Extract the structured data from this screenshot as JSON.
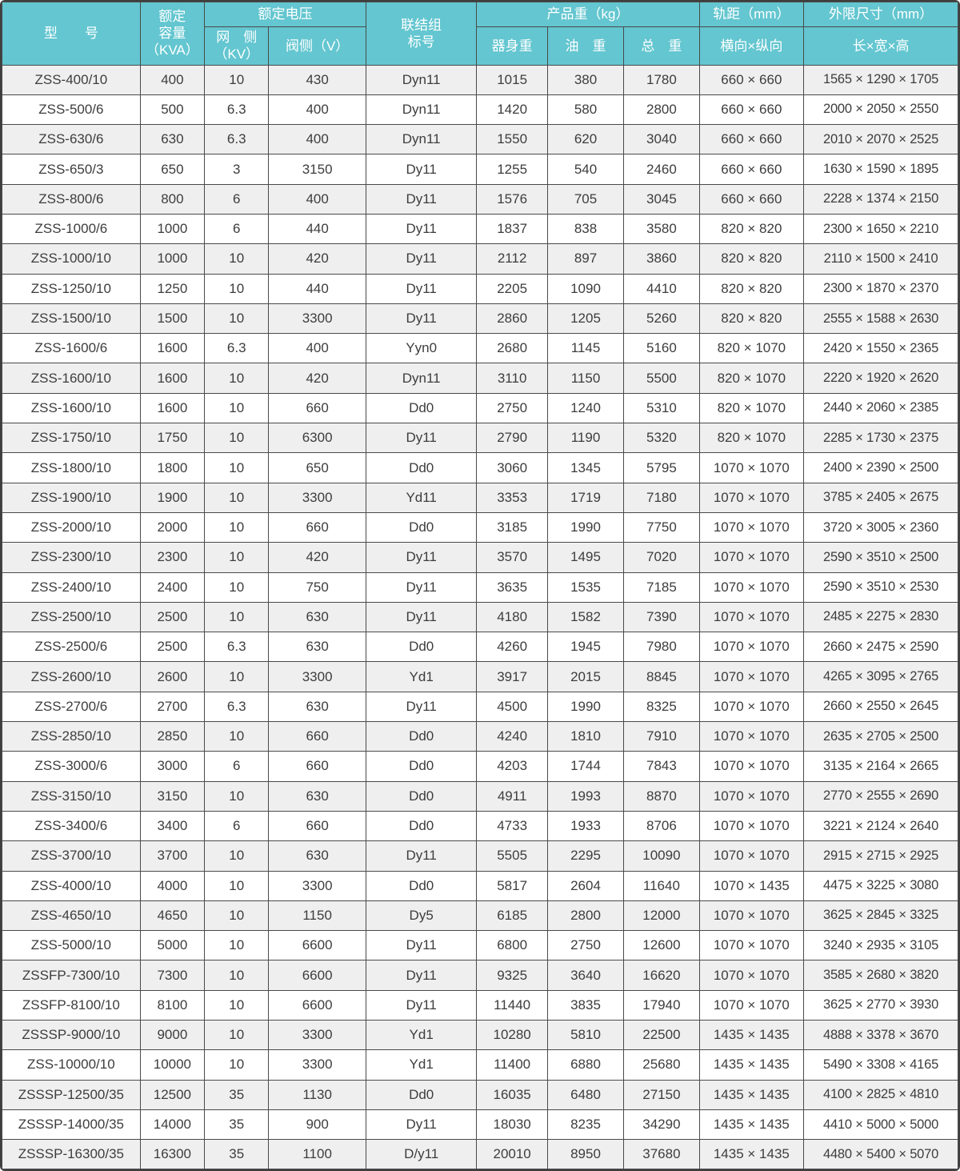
{
  "table": {
    "colors": {
      "header_bg": "#63c6d0",
      "header_text": "#ffffff",
      "grid_line": "#4a4a4a",
      "row_alt_bg": "#efefef",
      "body_text": "#3d3d3d"
    },
    "header": {
      "model": "型　　号",
      "capacity_lines": [
        "额定",
        "容量",
        "（KVA）"
      ],
      "rated_voltage": "额定电压",
      "grid_side_lines": [
        "网　侧",
        "（KV）"
      ],
      "valve_side": "阀侧（V）",
      "vector_group_lines": [
        "联结组",
        "标号"
      ],
      "product_weight": "产品重（kg）",
      "body_weight": "器身重",
      "oil_weight": "油　重",
      "total_weight": "总　重",
      "track_gauge": "轨距（mm）",
      "track_gauge_sub": "横向×纵向",
      "outline_dims": "外限尺寸（mm）",
      "outline_dims_sub": "长×宽×高"
    }
  },
  "rows": [
    {
      "model": "ZSS-400/10",
      "kva": "400",
      "grid_kv": "10",
      "valve_v": "430",
      "vector": "Dyn11",
      "body_weight": "1015",
      "oil_weight": "380",
      "total_weight": "1780",
      "gauge": "660 × 660",
      "dimensions": "1565 × 1290 × 1705"
    },
    {
      "model": "ZSS-500/6",
      "kva": "500",
      "grid_kv": "6.3",
      "valve_v": "400",
      "vector": "Dyn11",
      "body_weight": "1420",
      "oil_weight": "580",
      "total_weight": "2800",
      "gauge": "660 × 660",
      "dimensions": "2000 × 2050 × 2550"
    },
    {
      "model": "ZSS-630/6",
      "kva": "630",
      "grid_kv": "6.3",
      "valve_v": "400",
      "vector": "Dyn11",
      "body_weight": "1550",
      "oil_weight": "620",
      "total_weight": "3040",
      "gauge": "660 × 660",
      "dimensions": "2010 × 2070 × 2525"
    },
    {
      "model": "ZSS-650/3",
      "kva": "650",
      "grid_kv": "3",
      "valve_v": "3150",
      "vector": "Dy11",
      "body_weight": "1255",
      "oil_weight": "540",
      "total_weight": "2460",
      "gauge": "660 × 660",
      "dimensions": "1630 × 1590 × 1895"
    },
    {
      "model": "ZSS-800/6",
      "kva": "800",
      "grid_kv": "6",
      "valve_v": "400",
      "vector": "Dy11",
      "body_weight": "1576",
      "oil_weight": "705",
      "total_weight": "3045",
      "gauge": "660 × 660",
      "dimensions": "2228 × 1374 × 2150"
    },
    {
      "model": "ZSS-1000/6",
      "kva": "1000",
      "grid_kv": "6",
      "valve_v": "440",
      "vector": "Dy11",
      "body_weight": "1837",
      "oil_weight": "838",
      "total_weight": "3580",
      "gauge": "820 × 820",
      "dimensions": "2300 × 1650 × 2210"
    },
    {
      "model": "ZSS-1000/10",
      "kva": "1000",
      "grid_kv": "10",
      "valve_v": "420",
      "vector": "Dy11",
      "body_weight": "2112",
      "oil_weight": "897",
      "total_weight": "3860",
      "gauge": "820 × 820",
      "dimensions": "2110 × 1500 × 2410"
    },
    {
      "model": "ZSS-1250/10",
      "kva": "1250",
      "grid_kv": "10",
      "valve_v": "440",
      "vector": "Dy11",
      "body_weight": "2205",
      "oil_weight": "1090",
      "total_weight": "4410",
      "gauge": "820 × 820",
      "dimensions": "2300 × 1870 × 2370"
    },
    {
      "model": "ZSS-1500/10",
      "kva": "1500",
      "grid_kv": "10",
      "valve_v": "3300",
      "vector": "Dy11",
      "body_weight": "2860",
      "oil_weight": "1205",
      "total_weight": "5260",
      "gauge": "820 × 820",
      "dimensions": "2555 × 1588 × 2630"
    },
    {
      "model": "ZSS-1600/6",
      "kva": "1600",
      "grid_kv": "6.3",
      "valve_v": "400",
      "vector": "Yyn0",
      "body_weight": "2680",
      "oil_weight": "1145",
      "total_weight": "5160",
      "gauge": "820 × 1070",
      "dimensions": "2420 × 1550 × 2365"
    },
    {
      "model": "ZSS-1600/10",
      "kva": "1600",
      "grid_kv": "10",
      "valve_v": "420",
      "vector": "Dyn11",
      "body_weight": "3110",
      "oil_weight": "1150",
      "total_weight": "5500",
      "gauge": "820 × 1070",
      "dimensions": "2220 × 1920 × 2620"
    },
    {
      "model": "ZSS-1600/10",
      "kva": "1600",
      "grid_kv": "10",
      "valve_v": "660",
      "vector": "Dd0",
      "body_weight": "2750",
      "oil_weight": "1240",
      "total_weight": "5310",
      "gauge": "820 × 1070",
      "dimensions": "2440 × 2060 × 2385"
    },
    {
      "model": "ZSS-1750/10",
      "kva": "1750",
      "grid_kv": "10",
      "valve_v": "6300",
      "vector": "Dy11",
      "body_weight": "2790",
      "oil_weight": "1190",
      "total_weight": "5320",
      "gauge": "820 × 1070",
      "dimensions": "2285 × 1730 × 2375"
    },
    {
      "model": "ZSS-1800/10",
      "kva": "1800",
      "grid_kv": "10",
      "valve_v": "650",
      "vector": "Dd0",
      "body_weight": "3060",
      "oil_weight": "1345",
      "total_weight": "5795",
      "gauge": "1070 × 1070",
      "dimensions": "2400 × 2390 × 2500"
    },
    {
      "model": "ZSS-1900/10",
      "kva": "1900",
      "grid_kv": "10",
      "valve_v": "3300",
      "vector": "Yd11",
      "body_weight": "3353",
      "oil_weight": "1719",
      "total_weight": "7180",
      "gauge": "1070 × 1070",
      "dimensions": "3785 × 2405 × 2675"
    },
    {
      "model": "ZSS-2000/10",
      "kva": "2000",
      "grid_kv": "10",
      "valve_v": "660",
      "vector": "Dd0",
      "body_weight": "3185",
      "oil_weight": "1990",
      "total_weight": "7750",
      "gauge": "1070 × 1070",
      "dimensions": "3720 × 3005 × 2360"
    },
    {
      "model": "ZSS-2300/10",
      "kva": "2300",
      "grid_kv": "10",
      "valve_v": "420",
      "vector": "Dy11",
      "body_weight": "3570",
      "oil_weight": "1495",
      "total_weight": "7020",
      "gauge": "1070 × 1070",
      "dimensions": "2590 × 3510 × 2500"
    },
    {
      "model": "ZSS-2400/10",
      "kva": "2400",
      "grid_kv": "10",
      "valve_v": "750",
      "vector": "Dy11",
      "body_weight": "3635",
      "oil_weight": "1535",
      "total_weight": "7185",
      "gauge": "1070 × 1070",
      "dimensions": "2590 × 3510 × 2530"
    },
    {
      "model": "ZSS-2500/10",
      "kva": "2500",
      "grid_kv": "10",
      "valve_v": "630",
      "vector": "Dy11",
      "body_weight": "4180",
      "oil_weight": "1582",
      "total_weight": "7390",
      "gauge": "1070 × 1070",
      "dimensions": "2485 × 2275 × 2830"
    },
    {
      "model": "ZSS-2500/6",
      "kva": "2500",
      "grid_kv": "6.3",
      "valve_v": "630",
      "vector": "Dd0",
      "body_weight": "4260",
      "oil_weight": "1945",
      "total_weight": "7980",
      "gauge": "1070 × 1070",
      "dimensions": "2660 × 2475 × 2590"
    },
    {
      "model": "ZSS-2600/10",
      "kva": "2600",
      "grid_kv": "10",
      "valve_v": "3300",
      "vector": "Yd1",
      "body_weight": "3917",
      "oil_weight": "2015",
      "total_weight": "8845",
      "gauge": "1070 × 1070",
      "dimensions": "4265 × 3095 × 2765"
    },
    {
      "model": "ZSS-2700/6",
      "kva": "2700",
      "grid_kv": "6.3",
      "valve_v": "630",
      "vector": "Dy11",
      "body_weight": "4500",
      "oil_weight": "1990",
      "total_weight": "8325",
      "gauge": "1070 × 1070",
      "dimensions": "2660 × 2550 × 2645"
    },
    {
      "model": "ZSS-2850/10",
      "kva": "2850",
      "grid_kv": "10",
      "valve_v": "660",
      "vector": "Dd0",
      "body_weight": "4240",
      "oil_weight": "1810",
      "total_weight": "7910",
      "gauge": "1070 × 1070",
      "dimensions": "2635 × 2705 × 2500"
    },
    {
      "model": "ZSS-3000/6",
      "kva": "3000",
      "grid_kv": "6",
      "valve_v": "660",
      "vector": "Dd0",
      "body_weight": "4203",
      "oil_weight": "1744",
      "total_weight": "7843",
      "gauge": "1070 × 1070",
      "dimensions": "3135 × 2164 × 2665"
    },
    {
      "model": "ZSS-3150/10",
      "kva": "3150",
      "grid_kv": "10",
      "valve_v": "630",
      "vector": "Dd0",
      "body_weight": "4911",
      "oil_weight": "1993",
      "total_weight": "8870",
      "gauge": "1070 × 1070",
      "dimensions": "2770 × 2555 × 2690"
    },
    {
      "model": "ZSS-3400/6",
      "kva": "3400",
      "grid_kv": "6",
      "valve_v": "660",
      "vector": "Dd0",
      "body_weight": "4733",
      "oil_weight": "1933",
      "total_weight": "8706",
      "gauge": "1070 × 1070",
      "dimensions": "3221 × 2124 × 2640"
    },
    {
      "model": "ZSS-3700/10",
      "kva": "3700",
      "grid_kv": "10",
      "valve_v": "630",
      "vector": "Dy11",
      "body_weight": "5505",
      "oil_weight": "2295",
      "total_weight": "10090",
      "gauge": "1070 × 1070",
      "dimensions": "2915 × 2715 × 2925"
    },
    {
      "model": "ZSS-4000/10",
      "kva": "4000",
      "grid_kv": "10",
      "valve_v": "3300",
      "vector": "Dd0",
      "body_weight": "5817",
      "oil_weight": "2604",
      "total_weight": "11640",
      "gauge": "1070 × 1435",
      "dimensions": "4475 × 3225 × 3080"
    },
    {
      "model": "ZSS-4650/10",
      "kva": "4650",
      "grid_kv": "10",
      "valve_v": "1150",
      "vector": "Dy5",
      "body_weight": "6185",
      "oil_weight": "2800",
      "total_weight": "12000",
      "gauge": "1070 × 1070",
      "dimensions": "3625 × 2845 × 3325"
    },
    {
      "model": "ZSS-5000/10",
      "kva": "5000",
      "grid_kv": "10",
      "valve_v": "6600",
      "vector": "Dy11",
      "body_weight": "6800",
      "oil_weight": "2750",
      "total_weight": "12600",
      "gauge": "1070 × 1070",
      "dimensions": "3240 × 2935 × 3105"
    },
    {
      "model": "ZSSFP-7300/10",
      "kva": "7300",
      "grid_kv": "10",
      "valve_v": "6600",
      "vector": "Dy11",
      "body_weight": "9325",
      "oil_weight": "3640",
      "total_weight": "16620",
      "gauge": "1070 × 1070",
      "dimensions": "3585 × 2680 × 3820"
    },
    {
      "model": "ZSSFP-8100/10",
      "kva": "8100",
      "grid_kv": "10",
      "valve_v": "6600",
      "vector": "Dy11",
      "body_weight": "11440",
      "oil_weight": "3835",
      "total_weight": "17940",
      "gauge": "1070 × 1070",
      "dimensions": "3625 × 2770 × 3930"
    },
    {
      "model": "ZSSSP-9000/10",
      "kva": "9000",
      "grid_kv": "10",
      "valve_v": "3300",
      "vector": "Yd1",
      "body_weight": "10280",
      "oil_weight": "5810",
      "total_weight": "22500",
      "gauge": "1435 × 1435",
      "dimensions": "4888 × 3378 × 3670"
    },
    {
      "model": "ZSS-10000/10",
      "kva": "10000",
      "grid_kv": "10",
      "valve_v": "3300",
      "vector": "Yd1",
      "body_weight": "11400",
      "oil_weight": "6880",
      "total_weight": "25680",
      "gauge": "1435 × 1435",
      "dimensions": "5490 × 3308 × 4165"
    },
    {
      "model": "ZSSSP-12500/35",
      "kva": "12500",
      "grid_kv": "35",
      "valve_v": "1130",
      "vector": "Dd0",
      "body_weight": "16035",
      "oil_weight": "6480",
      "total_weight": "27150",
      "gauge": "1435 × 1435",
      "dimensions": "4100 × 2825 × 4810"
    },
    {
      "model": "ZSSSP-14000/35",
      "kva": "14000",
      "grid_kv": "35",
      "valve_v": "900",
      "vector": "Dy11",
      "body_weight": "18030",
      "oil_weight": "8235",
      "total_weight": "34290",
      "gauge": "1435 × 1435",
      "dimensions": "4410 × 5000 × 5000"
    },
    {
      "model": "ZSSSP-16300/35",
      "kva": "16300",
      "grid_kv": "35",
      "valve_v": "1100",
      "vector": "D/y11",
      "body_weight": "20010",
      "oil_weight": "8950",
      "total_weight": "37680",
      "gauge": "1435 × 1435",
      "dimensions": "4480 × 5400 × 5070"
    }
  ]
}
